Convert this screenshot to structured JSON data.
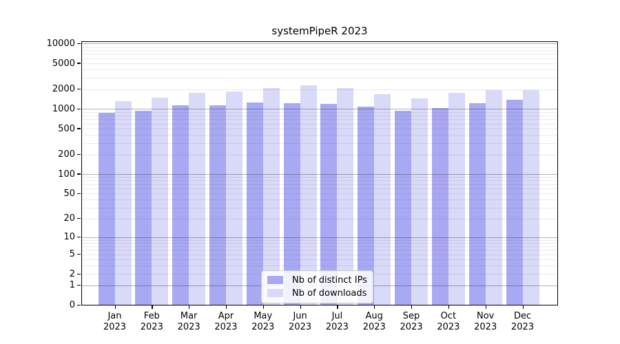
{
  "title": "systemPipeR 2023",
  "chart_data": {
    "type": "bar",
    "title": "systemPipeR 2023",
    "categories": [
      "Jan",
      "Feb",
      "Mar",
      "Apr",
      "May",
      "Jun",
      "Jul",
      "Aug",
      "Sep",
      "Oct",
      "Nov",
      "Dec"
    ],
    "x_year_label": "2023",
    "series": [
      {
        "name": "Nb of distinct IPs",
        "color": "#a9a9f3",
        "values": [
          865,
          950,
          1137,
          1137,
          1243,
          1213,
          1184,
          1075,
          937,
          1032,
          1213,
          1394
        ]
      },
      {
        "name": "Nb of downloads",
        "color": "#d9d9f8",
        "values": [
          1335,
          1485,
          1746,
          1846,
          2087,
          2290,
          2087,
          1676,
          1449,
          1746,
          1966,
          1966
        ]
      }
    ],
    "yscale": "log1p",
    "ylim": [
      0,
      11000
    ],
    "y_tick_values": [
      0,
      1,
      2,
      5,
      10,
      20,
      50,
      100,
      200,
      500,
      1000,
      2000,
      5000,
      10000
    ],
    "y_tick_labels": [
      "0",
      "1",
      "2",
      "5",
      "10",
      "20",
      "50",
      "100",
      "200",
      "500",
      "1000",
      "2000",
      "5000",
      "10000"
    ],
    "grid": true,
    "legend": {
      "position": "lower center",
      "entries": [
        "Nb of distinct IPs",
        "Nb of downloads"
      ]
    },
    "colors": {
      "major_grid": "rgba(0,0,0,0.30)",
      "minor_grid": "rgba(0,0,0,0.08)",
      "axis": "#000000",
      "background": "#ffffff"
    }
  }
}
